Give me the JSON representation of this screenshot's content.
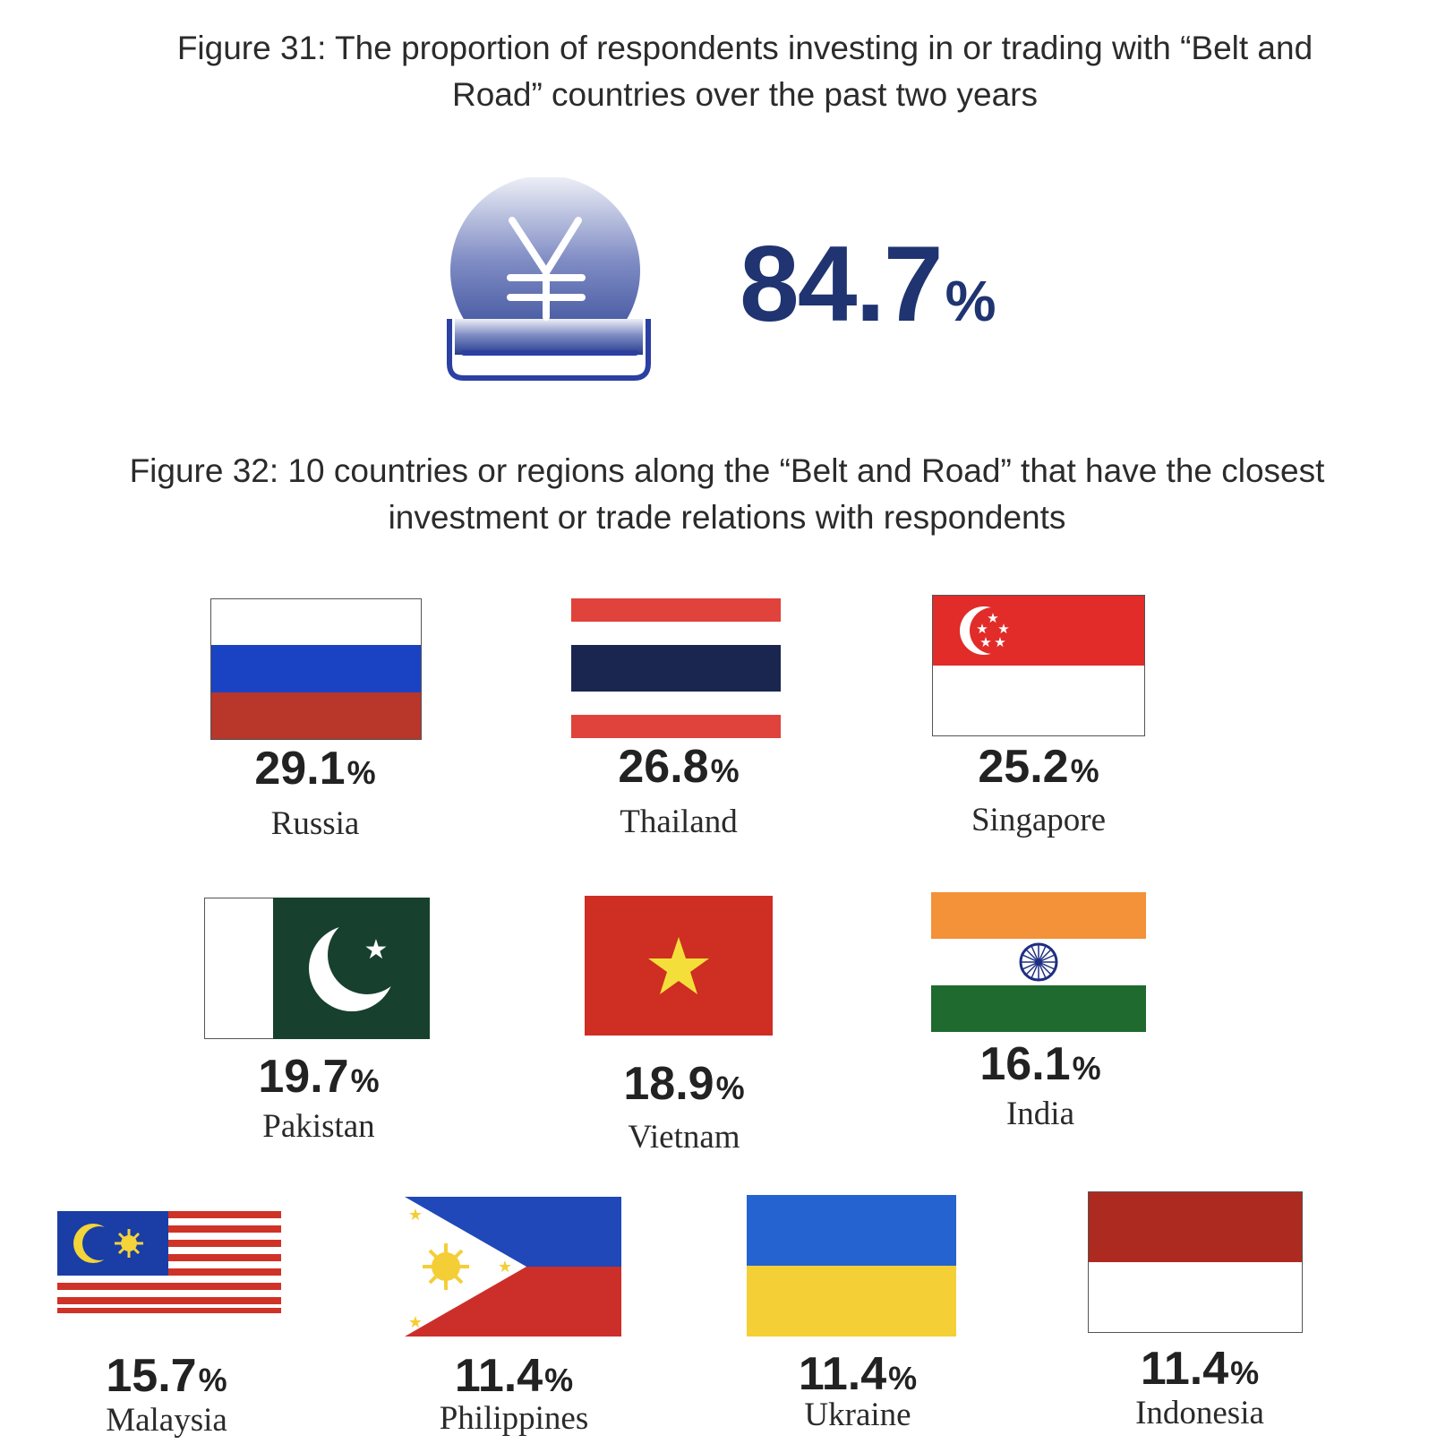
{
  "figure31": {
    "title_line1": "Figure 31: The proportion of respondents investing in or trading with “Belt and",
    "title_line2": "Road” countries over the past two years",
    "icon": "yen-coin-slot-icon",
    "value": "84.7",
    "unit": "%",
    "accent_color": "#1f3470"
  },
  "figure32": {
    "title_line1": "Figure 32: 10  countries or regions along the “Belt and Road” that have the closest",
    "title_line2": "investment or trade relations with respondents",
    "chart_data": {
      "type": "table",
      "unit": "%",
      "categories": [
        "Russia",
        "Thailand",
        "Singapore",
        "Pakistan",
        "Vietnam",
        "India",
        "Malaysia",
        "Philippines",
        "Ukraine",
        "Indonesia"
      ],
      "values": [
        29.1,
        26.8,
        25.2,
        19.7,
        18.9,
        16.1,
        15.7,
        11.4,
        11.4,
        11.4
      ]
    },
    "countries": [
      {
        "name": "Russia",
        "value": "29.1",
        "unit": "%",
        "flag": "russia-flag-icon"
      },
      {
        "name": "Thailand",
        "value": "26.8",
        "unit": "%",
        "flag": "thailand-flag-icon"
      },
      {
        "name": "Singapore",
        "value": "25.2",
        "unit": "%",
        "flag": "singapore-flag-icon"
      },
      {
        "name": "Pakistan",
        "value": "19.7",
        "unit": "%",
        "flag": "pakistan-flag-icon"
      },
      {
        "name": "Vietnam",
        "value": "18.9",
        "unit": "%",
        "flag": "vietnam-flag-icon"
      },
      {
        "name": "India",
        "value": "16.1",
        "unit": "%",
        "flag": "india-flag-icon"
      },
      {
        "name": "Malaysia",
        "value": "15.7",
        "unit": "%",
        "flag": "malaysia-flag-icon"
      },
      {
        "name": "Philippines",
        "value": "11.4",
        "unit": "%",
        "flag": "philippines-flag-icon"
      },
      {
        "name": "Ukraine",
        "value": "11.4",
        "unit": "%",
        "flag": "ukraine-flag-icon"
      },
      {
        "name": "Indonesia",
        "value": "11.4",
        "unit": "%",
        "flag": "indonesia-flag-icon"
      }
    ]
  }
}
